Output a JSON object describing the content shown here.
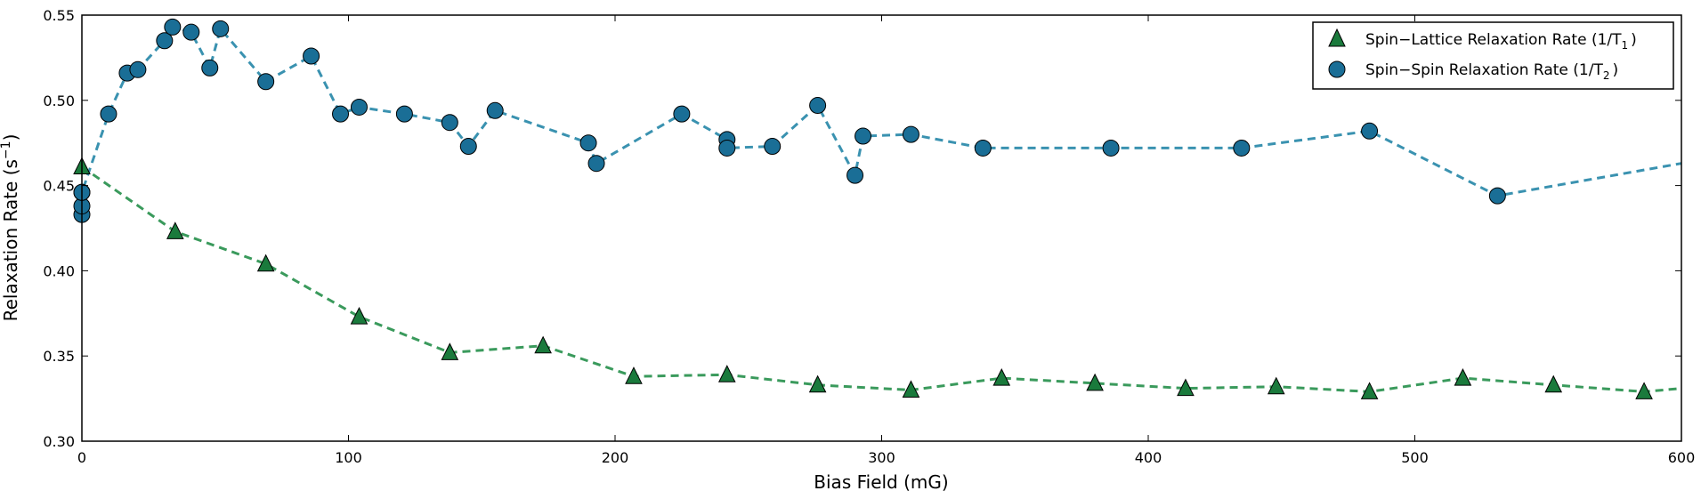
{
  "chart_data": {
    "type": "scatter",
    "title": "",
    "xlabel": "Bias Field (mG)",
    "ylabel": "Relaxation Rate (s",
    "ylabel_sup": "−1",
    "ylabel_close": ")",
    "xlim": [
      0,
      600
    ],
    "ylim": [
      0.3,
      0.55
    ],
    "xticks": [
      0,
      100,
      200,
      300,
      400,
      500,
      600
    ],
    "yticks": [
      0.3,
      0.35,
      0.4,
      0.45,
      0.5,
      0.55
    ],
    "xtick_labels": [
      "0",
      "100",
      "200",
      "300",
      "400",
      "500",
      "600"
    ],
    "ytick_labels": [
      "0.30",
      "0.35",
      "0.40",
      "0.45",
      "0.50",
      "0.55"
    ],
    "grid": false,
    "legend_position": "top-right",
    "series": [
      {
        "name": "Spin−Lattice Relaxation Rate (1/T",
        "name_sub": "1",
        "name_close": ")",
        "marker": "triangle",
        "color": "#1a7a3c",
        "line_color": "#3a9a5c",
        "line_style": "dashed",
        "x": [
          0,
          35,
          69,
          104,
          138,
          173,
          207,
          242,
          276,
          311,
          345,
          380,
          414,
          448,
          483,
          518,
          552,
          586,
          600
        ],
        "y": [
          0.461,
          0.423,
          0.404,
          0.373,
          0.352,
          0.356,
          0.338,
          0.339,
          0.333,
          0.33,
          0.337,
          0.334,
          0.331,
          0.332,
          0.329,
          0.337,
          0.333,
          0.329,
          0.331
        ],
        "markers_shown": [
          true,
          true,
          true,
          true,
          true,
          true,
          true,
          true,
          true,
          true,
          true,
          true,
          true,
          true,
          true,
          true,
          true,
          true,
          false
        ]
      },
      {
        "name": "Spin−Spin Relaxation Rate (1/T",
        "name_sub": "2",
        "name_close": ")",
        "marker": "circle",
        "color": "#1a6e96",
        "line_color": "#3a92b0",
        "line_style": "dashed",
        "x": [
          0,
          0,
          0,
          0,
          10,
          17,
          21,
          31,
          34,
          41,
          48,
          52,
          69,
          86,
          97,
          104,
          121,
          138,
          145,
          155,
          190,
          193,
          225,
          242,
          242,
          259,
          276,
          290,
          293,
          311,
          338,
          386,
          435,
          483,
          531,
          600
        ],
        "y": [
          0.433,
          0.438,
          0.446,
          0.446,
          0.492,
          0.516,
          0.518,
          0.535,
          0.543,
          0.54,
          0.519,
          0.542,
          0.511,
          0.526,
          0.492,
          0.496,
          0.492,
          0.487,
          0.473,
          0.494,
          0.475,
          0.463,
          0.492,
          0.477,
          0.472,
          0.473,
          0.497,
          0.456,
          0.479,
          0.48,
          0.472,
          0.472,
          0.472,
          0.482,
          0.444,
          0.463
        ],
        "markers_shown": [
          true,
          true,
          true,
          true,
          true,
          true,
          true,
          true,
          true,
          true,
          true,
          true,
          true,
          true,
          true,
          true,
          true,
          true,
          true,
          true,
          true,
          true,
          true,
          true,
          true,
          true,
          true,
          true,
          true,
          true,
          true,
          true,
          true,
          true,
          true,
          false
        ]
      }
    ]
  }
}
